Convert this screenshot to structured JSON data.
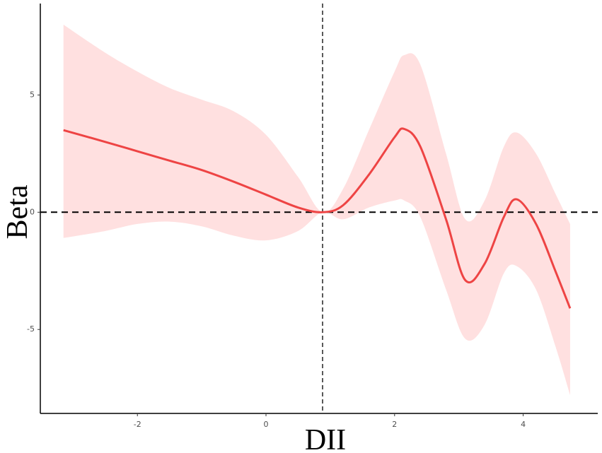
{
  "chart_data": {
    "type": "line",
    "x_label": "DII",
    "y_label": "Beta",
    "x": [
      -3.15,
      -2.5,
      -2,
      -1.5,
      -1,
      -0.5,
      0,
      0.5,
      0.88,
      1.2,
      1.6,
      2,
      2.15,
      2.4,
      2.8,
      3.1,
      3.4,
      3.7,
      3.9,
      4.2,
      4.5,
      4.73
    ],
    "values": [
      3.5,
      3.0,
      2.6,
      2.2,
      1.8,
      1.3,
      0.75,
      0.2,
      0,
      0.3,
      1.6,
      3.2,
      3.55,
      2.8,
      -0.3,
      -2.9,
      -2.2,
      -0.2,
      0.55,
      -0.5,
      -2.5,
      -4.1
    ],
    "upper": [
      8.0,
      6.8,
      6.0,
      5.3,
      4.8,
      4.3,
      3.3,
      1.5,
      0,
      1.0,
      3.5,
      6.0,
      6.7,
      6.3,
      2.5,
      -0.3,
      0.5,
      2.8,
      3.4,
      2.5,
      0.8,
      -0.5
    ],
    "lower": [
      -1.1,
      -0.8,
      -0.5,
      -0.4,
      -0.6,
      -1.0,
      -1.2,
      -0.8,
      0,
      -0.3,
      0.2,
      0.5,
      0.5,
      -0.2,
      -3.3,
      -5.4,
      -4.8,
      -2.6,
      -2.3,
      -3.3,
      -5.7,
      -7.8
    ],
    "color": "#ee4444",
    "band_color": "#ffe0e0",
    "xlim": [
      -3.51,
      5.16
    ],
    "ylim": [
      -8.58,
      8.9
    ],
    "xticks": [
      -2,
      0,
      2,
      4
    ],
    "yticks": [
      -5,
      0,
      5
    ],
    "vline": 0.88,
    "hline": 0
  }
}
